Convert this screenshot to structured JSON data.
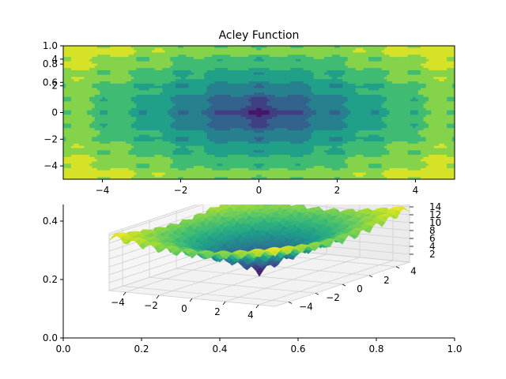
{
  "chart_data": [
    {
      "type": "heatmap",
      "subtype": "filled-contour",
      "title": "Acley Function",
      "function": "ackley",
      "xlim": [
        -5,
        5
      ],
      "ylim": [
        -5,
        5
      ],
      "x_ticks": [
        -4,
        -2,
        0,
        2,
        4
      ],
      "y_ticks": [
        -4,
        -2,
        0,
        2,
        4
      ],
      "xlabel": "",
      "ylabel": "",
      "colormap": "viridis",
      "minimum": {
        "x": 0,
        "y": 0,
        "z": 0
      }
    },
    {
      "type": "surface",
      "function": "ackley",
      "xlim": [
        -5,
        5
      ],
      "ylim": [
        -5,
        5
      ],
      "zlim": [
        0,
        14.5
      ],
      "x_ticks": [
        -4,
        -2,
        0,
        2,
        4
      ],
      "y_ticks": [
        -4,
        -2,
        0,
        2,
        4
      ],
      "z_ticks": [
        2,
        4,
        6,
        8,
        10,
        12,
        14
      ],
      "colormap": "viridis",
      "grid": true
    }
  ],
  "overlay_axes_top": {
    "y_ticks": [
      "1.0",
      "0.8",
      "0.6"
    ],
    "ylim": [
      0,
      1
    ]
  },
  "overlay_axes_bottom": {
    "x_ticks": [
      "0.0",
      "0.2",
      "0.4",
      "0.6",
      "0.8",
      "1.0"
    ],
    "y_ticks": [
      "0.0",
      "0.2",
      "0.4"
    ],
    "xlim": [
      0,
      1
    ],
    "ylim": [
      0,
      0.5
    ]
  },
  "colors": {
    "viridis": [
      "#440154",
      "#482878",
      "#3e4989",
      "#31688e",
      "#26828e",
      "#1f9e89",
      "#35b779",
      "#6ece58",
      "#b5de2b",
      "#fde725"
    ],
    "axis": "#000000",
    "pane_grid": "#cccccc"
  }
}
